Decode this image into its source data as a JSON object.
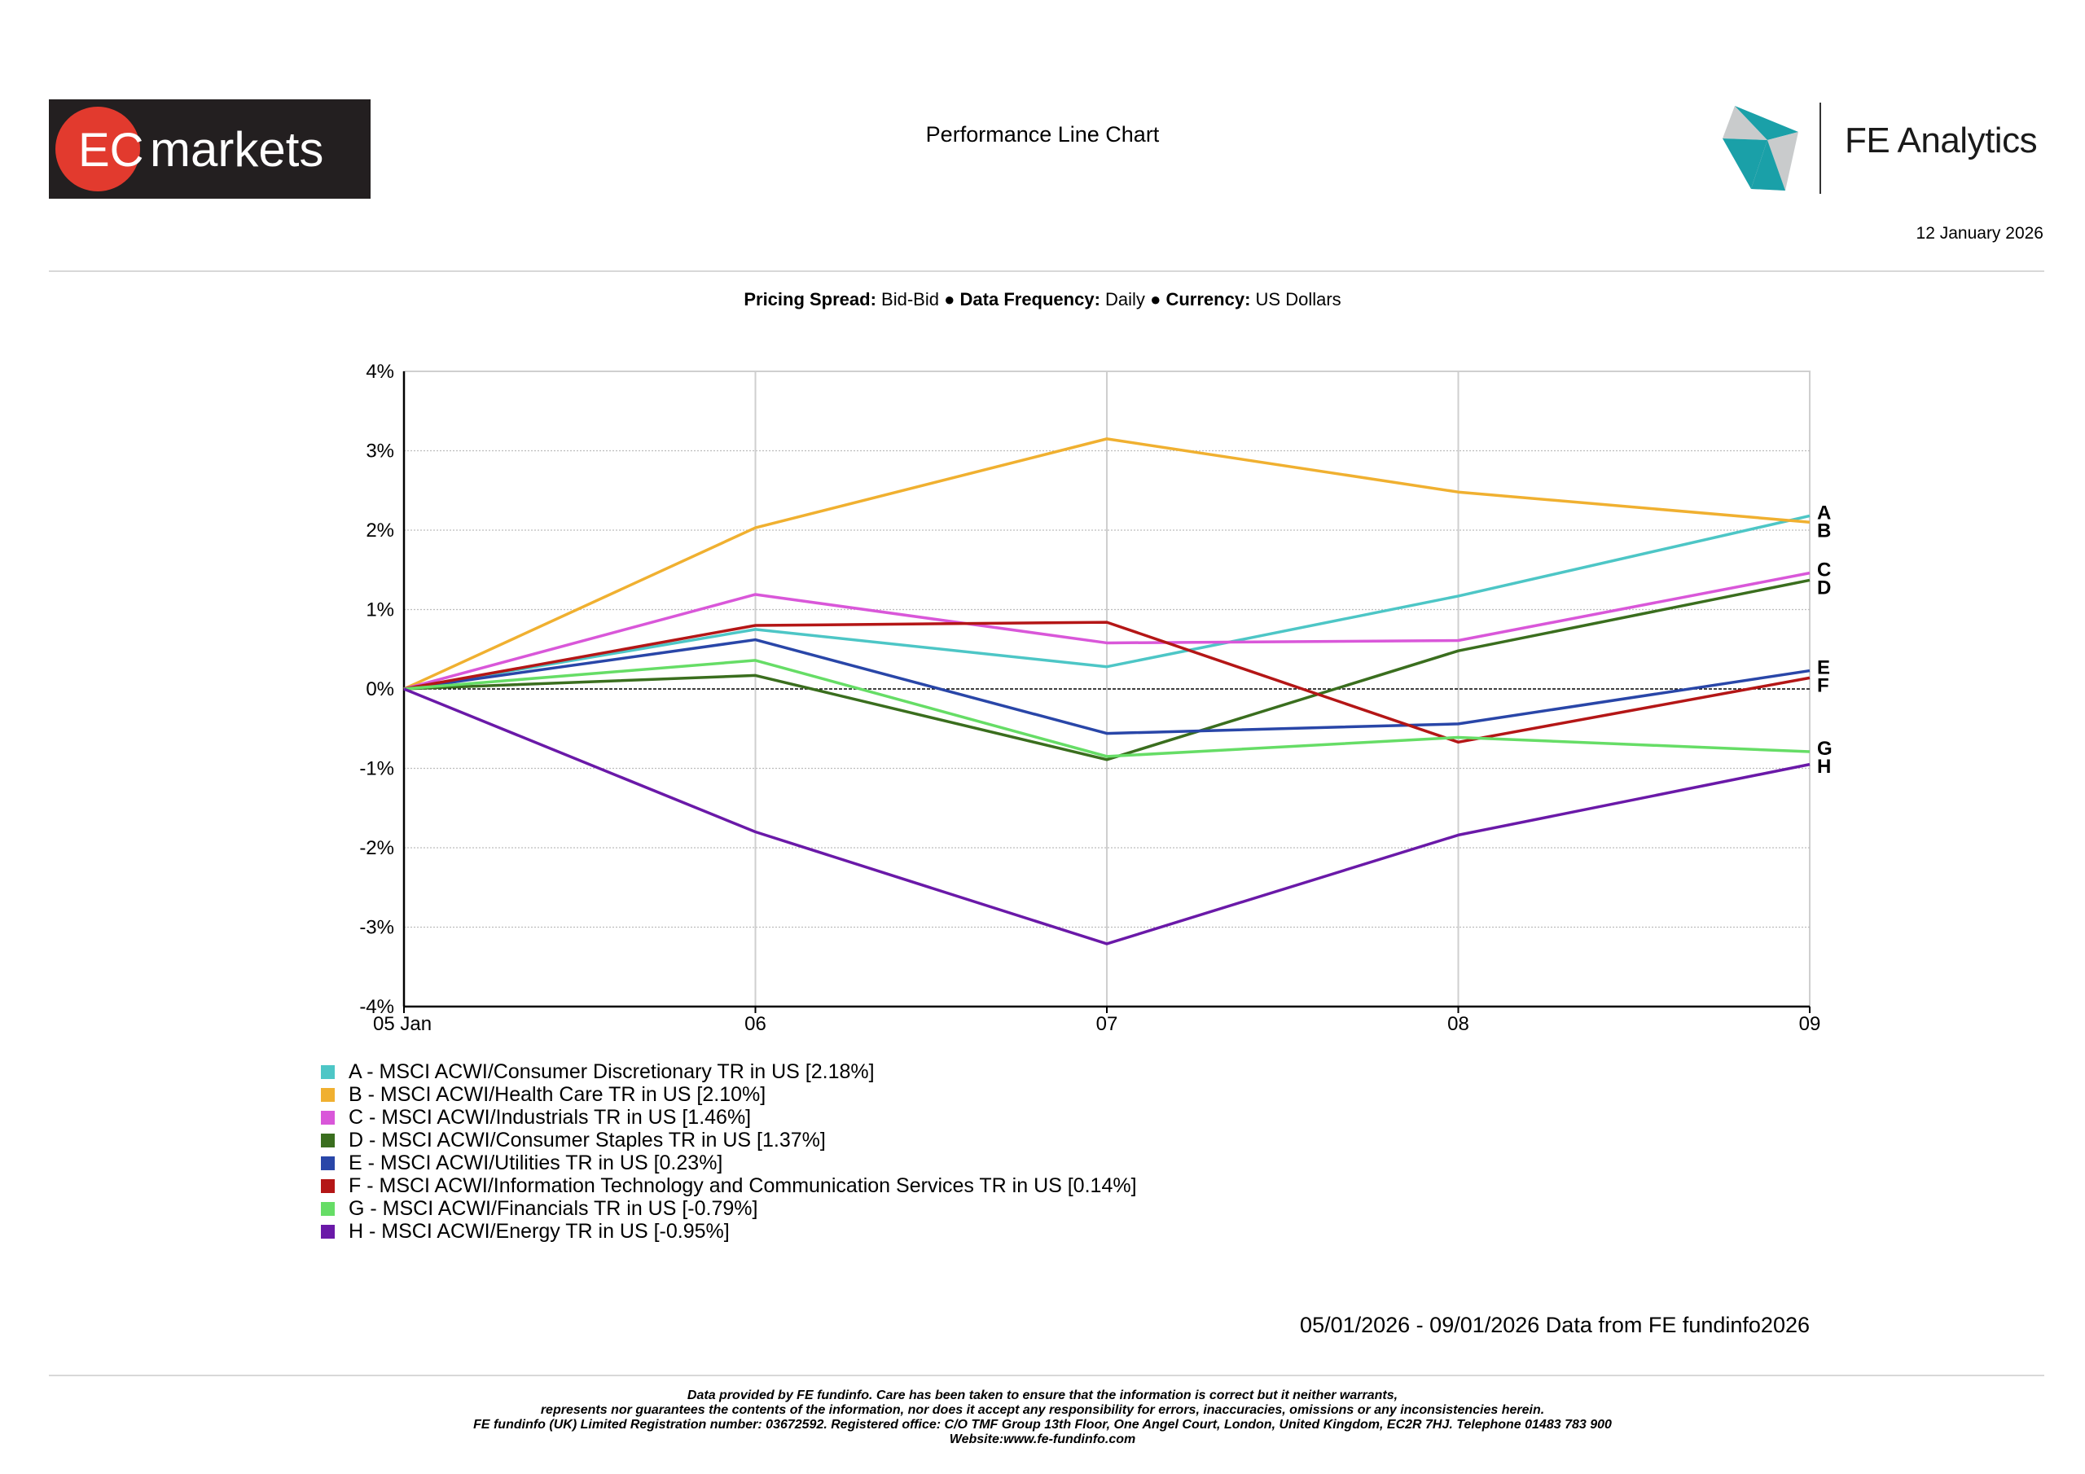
{
  "header": {
    "brand_logo_text": "EC markets",
    "title": "Performance Line Chart",
    "vendor_name": "FE Analytics",
    "date": "12 January 2026"
  },
  "meta": {
    "pricing_spread_label": "Pricing Spread:",
    "pricing_spread_value": "Bid-Bid",
    "data_frequency_label": "Data Frequency:",
    "data_frequency_value": "Daily",
    "currency_label": "Currency:",
    "currency_value": "US Dollars",
    "separator": "●"
  },
  "chart_data": {
    "type": "line",
    "title": "Performance Line Chart",
    "xlabel": "",
    "ylabel": "",
    "categories": [
      "05 Jan",
      "06",
      "07",
      "08",
      "09"
    ],
    "yticks": [
      "4%",
      "3%",
      "2%",
      "1%",
      "0%",
      "-1%",
      "-2%",
      "-3%",
      "-4%"
    ],
    "ylim": [
      -4,
      4
    ],
    "grid": true,
    "legend_position": "bottom-left",
    "series": [
      {
        "key": "A",
        "name": "A - MSCI ACWI/Consumer Discretionary TR in US [2.18%]",
        "color": "#4dc6c6",
        "values": [
          0,
          0.75,
          0.28,
          1.17,
          2.18
        ]
      },
      {
        "key": "B",
        "name": "B - MSCI ACWI/Health Care TR in US [2.10%]",
        "color": "#f0b030",
        "values": [
          0,
          2.03,
          3.15,
          2.48,
          2.1
        ]
      },
      {
        "key": "C",
        "name": "C - MSCI ACWI/Industrials TR in US [1.46%]",
        "color": "#d957d9",
        "values": [
          0,
          1.19,
          0.58,
          0.61,
          1.46
        ]
      },
      {
        "key": "D",
        "name": "D - MSCI ACWI/Consumer Staples TR in US [1.37%]",
        "color": "#3a6e1e",
        "values": [
          0,
          0.17,
          -0.89,
          0.48,
          1.37
        ]
      },
      {
        "key": "E",
        "name": "E - MSCI ACWI/Utilities TR in US [0.23%]",
        "color": "#2946a8",
        "values": [
          0,
          0.62,
          -0.56,
          -0.44,
          0.23
        ]
      },
      {
        "key": "F",
        "name": "F - MSCI ACWI/Information Technology and Communication Services TR in US [0.14%]",
        "color": "#b41616",
        "values": [
          0,
          0.8,
          0.84,
          -0.67,
          0.14
        ]
      },
      {
        "key": "G",
        "name": "G - MSCI ACWI/Financials TR in US [-0.79%]",
        "color": "#66dd66",
        "values": [
          0,
          0.36,
          -0.85,
          -0.61,
          -0.79
        ]
      },
      {
        "key": "H",
        "name": "H - MSCI ACWI/Energy TR in US [-0.95%]",
        "color": "#6a19a8",
        "values": [
          0,
          -1.8,
          -3.21,
          -1.84,
          -0.95
        ]
      }
    ]
  },
  "footer": {
    "range_note": "05/01/2026 - 09/01/2026 Data from FE fundinfo2026",
    "disclaimer_lines": [
      "Data provided by FE fundinfo. Care has been taken to ensure that the information is correct but it neither warrants,",
      "represents nor guarantees the contents of the information, nor does it accept any responsibility for errors, inaccuracies, omissions or any inconsistencies herein.",
      "FE fundinfo (UK) Limited Registration number: 03672592. Registered office: C/O TMF Group 13th Floor, One Angel Court, London, United Kingdom, EC2R 7HJ. Telephone 01483 783 900",
      "Website:www.fe-fundinfo.com"
    ]
  }
}
